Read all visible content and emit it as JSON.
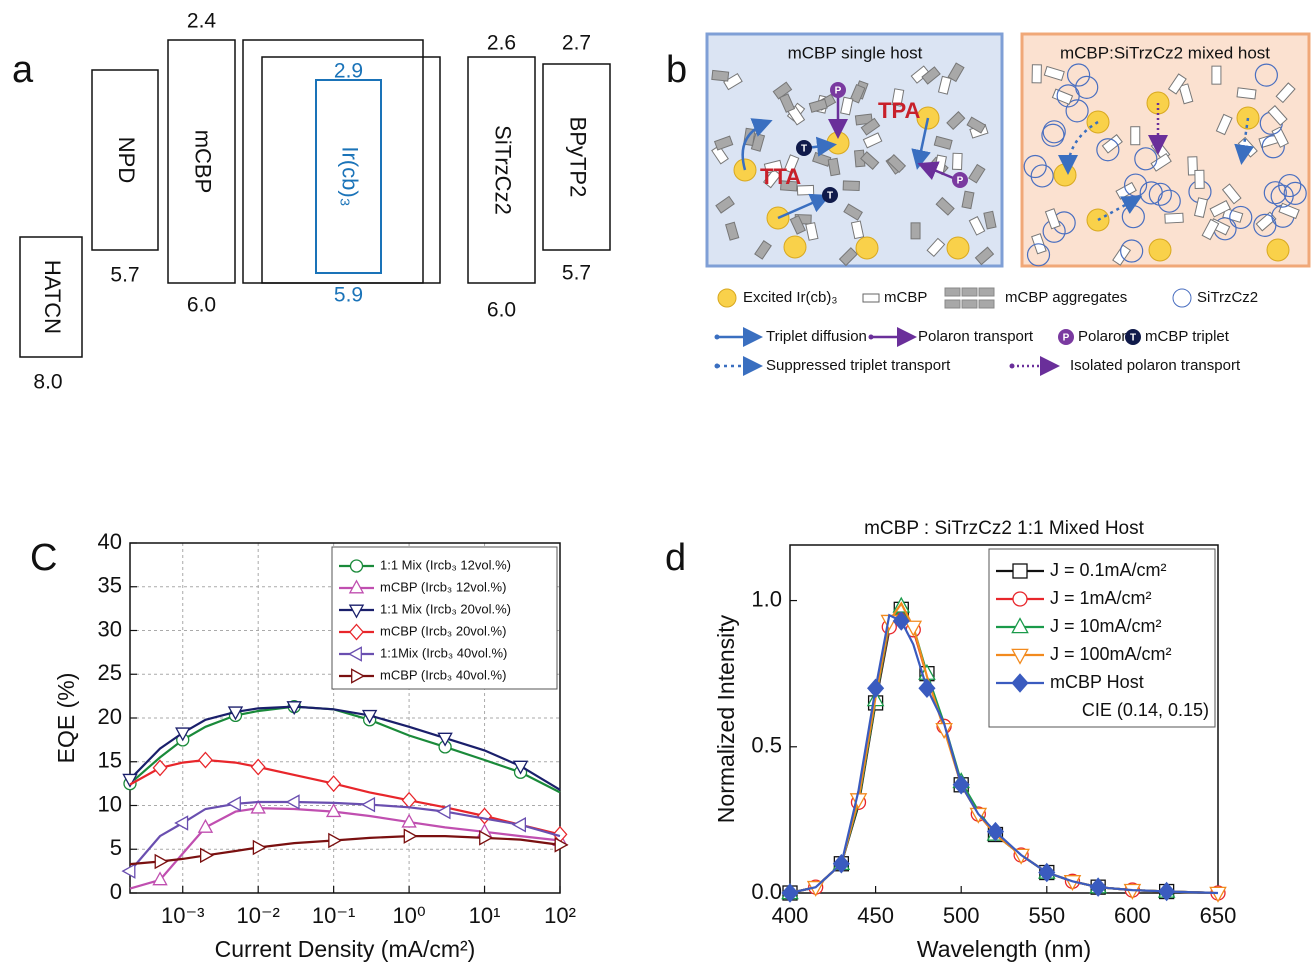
{
  "panel_a": {
    "label": "a",
    "layers": [
      {
        "name": "HATCN",
        "homo": "8.0"
      },
      {
        "name": "NPD",
        "homo": "5.7"
      },
      {
        "name": "mCBP",
        "lumo": "2.4",
        "homo": "6.0"
      },
      {
        "name": "Ir(cb)₃",
        "lumo": "2.9",
        "homo": "5.9"
      },
      {
        "name": "SiTrzCz2",
        "lumo": "2.6",
        "homo": "6.0"
      },
      {
        "name": "BPyTP2",
        "lumo": "2.7",
        "homo": "5.7"
      }
    ]
  },
  "panel_b": {
    "label": "b",
    "hosts": [
      "mCBP single host",
      "mCBP:SiTrzCz2 mixed host"
    ],
    "mechanisms": [
      "TTA",
      "TPA"
    ],
    "symbols": {
      "polaron": "P",
      "triplet": "T"
    },
    "legend": [
      "Excited Ir(cb)₃",
      "mCBP",
      "mCBP aggregates",
      "SiTrzCz2",
      "Triplet diffusion",
      "Polaron transport",
      "Polaron",
      "mCBP triplet",
      "Suppressed triplet transport",
      "Isolated polaron transport"
    ]
  },
  "chart_data": [
    {
      "type": "line",
      "panel": "C",
      "xlabel": "Current Density (mA/cm²)",
      "ylabel": "EQE (%)",
      "xscale": "log",
      "xlim": [
        0.0002,
        100
      ],
      "ylim": [
        0,
        40
      ],
      "xticks": [
        {
          "value": 0.001,
          "label": "10⁻³"
        },
        {
          "value": 0.01,
          "label": "10⁻²"
        },
        {
          "value": 0.1,
          "label": "10⁻¹"
        },
        {
          "value": 1,
          "label": "10⁰"
        },
        {
          "value": 10,
          "label": "10¹"
        },
        {
          "value": 100,
          "label": "10²"
        }
      ],
      "yticks": [
        0,
        5,
        10,
        15,
        20,
        25,
        30,
        35,
        40
      ],
      "grid": true,
      "legend": "upper right",
      "x": [
        0.0002,
        0.0005,
        0.001,
        0.002,
        0.005,
        0.01,
        0.03,
        0.1,
        0.3,
        1,
        3,
        10,
        30,
        100
      ],
      "series": [
        {
          "name": "1:1 Mix (Ircb₃ 12vol.%)",
          "color": "#1a8a3a",
          "marker": "circle",
          "values": [
            12.5,
            15.5,
            17.5,
            19,
            20.3,
            20.8,
            21.3,
            21,
            19.8,
            18,
            16.7,
            15.2,
            13.8,
            11.5
          ]
        },
        {
          "name": "mCBP (Ircb₃ 12vol.%)",
          "color": "#c04fb0",
          "marker": "triangle-up",
          "values": [
            0.5,
            1.5,
            4.5,
            7.5,
            9.3,
            9.7,
            9.6,
            9.3,
            8.8,
            8.1,
            7.5,
            7,
            6.5,
            6
          ]
        },
        {
          "name": "1:1 Mix (Ircb₃ 20vol.%)",
          "color": "#1a1f6b",
          "marker": "triangle-down",
          "values": [
            13,
            16.5,
            18.3,
            19.8,
            20.7,
            21.1,
            21.3,
            21,
            20.3,
            19,
            17.7,
            16.3,
            14.5,
            11.8
          ]
        },
        {
          "name": "mCBP (Ircb₃ 20vol.%)",
          "color": "#e8262b",
          "marker": "diamond",
          "values": [
            12.4,
            14.3,
            14.9,
            15.2,
            14.9,
            14.4,
            13.5,
            12.5,
            11.5,
            10.6,
            9.8,
            8.8,
            7.8,
            6.7
          ]
        },
        {
          "name": "1:1Mix (Ircb₃ 40vol.%)",
          "color": "#6a4fb0",
          "marker": "triangle-left",
          "values": [
            2.5,
            6.5,
            8,
            9.6,
            10.2,
            10.4,
            10.4,
            10.3,
            10.1,
            9.8,
            9.3,
            8.5,
            7.8,
            6.5
          ]
        },
        {
          "name": "mCBP (Ircb₃ 40vol.%)",
          "color": "#7a1010",
          "marker": "triangle-right",
          "values": [
            3.3,
            3.6,
            3.9,
            4.3,
            4.8,
            5.2,
            5.7,
            6,
            6.3,
            6.5,
            6.5,
            6.3,
            6.1,
            5.5
          ]
        }
      ]
    },
    {
      "type": "line",
      "panel": "d",
      "title": "mCBP : SiTrzCz2 1:1 Mixed Host",
      "xlabel": "Wavelength (nm)",
      "ylabel": "Normalized Intensity",
      "annotation": "CIE (0.14, 0.15)",
      "xlim": [
        400,
        650
      ],
      "ylim": [
        0,
        1.19
      ],
      "xticks": [
        400,
        450,
        500,
        550,
        600,
        650
      ],
      "yticks": [
        {
          "value": 0,
          "label": "0.0"
        },
        {
          "value": 0.5,
          "label": "0.5"
        },
        {
          "value": 1,
          "label": "1.0"
        }
      ],
      "grid": false,
      "legend": "upper right",
      "x": [
        400,
        415,
        430,
        440,
        450,
        458,
        465,
        472,
        480,
        490,
        500,
        510,
        520,
        535,
        550,
        565,
        580,
        600,
        620,
        650
      ],
      "series": [
        {
          "name": "J = 0.1mA/cm²",
          "color": "#111111",
          "marker": "square",
          "values": [
            0,
            0.02,
            0.1,
            0.3,
            0.65,
            0.9,
            0.97,
            0.9,
            0.75,
            0.57,
            0.37,
            0.27,
            0.2,
            0.13,
            0.07,
            0.04,
            0.02,
            0.01,
            0.005,
            0
          ]
        },
        {
          "name": "J = 1mA/cm²",
          "color": "#e8262b",
          "marker": "circle",
          "values": [
            0,
            0.02,
            0.1,
            0.31,
            0.66,
            0.91,
            0.97,
            0.9,
            0.74,
            0.57,
            0.37,
            0.27,
            0.2,
            0.13,
            0.07,
            0.04,
            0.02,
            0.01,
            0.005,
            0
          ]
        },
        {
          "name": "J = 10mA/cm²",
          "color": "#1a9a4a",
          "marker": "triangle-up",
          "values": [
            0,
            0.02,
            0.1,
            0.31,
            0.66,
            0.92,
            0.98,
            0.91,
            0.75,
            0.58,
            0.38,
            0.28,
            0.2,
            0.13,
            0.07,
            0.04,
            0.02,
            0.01,
            0.005,
            0
          ]
        },
        {
          "name": "J = 100mA/cm²",
          "color": "#f28a1e",
          "marker": "triangle-down",
          "values": [
            0,
            0.02,
            0.1,
            0.32,
            0.67,
            0.93,
            0.99,
            0.91,
            0.74,
            0.56,
            0.37,
            0.27,
            0.2,
            0.13,
            0.07,
            0.04,
            0.02,
            0.01,
            0.005,
            0
          ]
        },
        {
          "name": "mCBP Host",
          "color": "#3a5bbf",
          "marker": "diamond",
          "filled": true,
          "values": [
            0,
            0.02,
            0.1,
            0.35,
            0.7,
            0.95,
            0.93,
            0.85,
            0.7,
            0.58,
            0.37,
            0.27,
            0.21,
            0.13,
            0.07,
            0.04,
            0.02,
            0.01,
            0.005,
            0
          ]
        }
      ]
    }
  ]
}
